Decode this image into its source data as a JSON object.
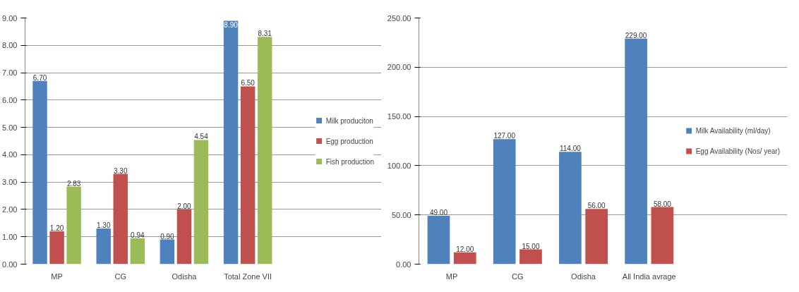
{
  "chart_data": [
    {
      "type": "bar",
      "categories": [
        "MP",
        "CG",
        "Odisha",
        "Total Zone VII"
      ],
      "series": [
        {
          "name": "Milk produciton",
          "color": "#4f81bd",
          "values": [
            6.7,
            1.3,
            0.9,
            8.9
          ],
          "value_labels": [
            "6.70",
            "1.30",
            "0.90",
            "8.90"
          ]
        },
        {
          "name": "Egg production",
          "color": "#c0504d",
          "values": [
            1.2,
            3.3,
            2.0,
            6.5
          ],
          "value_labels": [
            "1.20",
            "3.30",
            "2.00",
            "6.50"
          ]
        },
        {
          "name": "Fish production",
          "color": "#9bbb59",
          "values": [
            2.83,
            0.94,
            4.54,
            8.31
          ],
          "value_labels": [
            "2.83",
            "0.94",
            "4.54",
            "8.31"
          ]
        }
      ],
      "ylim": [
        0,
        9
      ],
      "yticks": [
        {
          "value": 0,
          "label": "0.00"
        },
        {
          "value": 1,
          "label": "1.00"
        },
        {
          "value": 2,
          "label": "2.00"
        },
        {
          "value": 3,
          "label": "3.00"
        },
        {
          "value": 4,
          "label": "4.00"
        },
        {
          "value": 5,
          "label": "5.00"
        },
        {
          "value": 6,
          "label": "6.00"
        },
        {
          "value": 7,
          "label": "7.00"
        },
        {
          "value": 8,
          "label": "8.00"
        },
        {
          "value": 9,
          "label": "9.00"
        }
      ],
      "grid": "y",
      "legend": "right"
    },
    {
      "type": "bar",
      "categories": [
        "MP",
        "CG",
        "Odisha",
        "All India avrage"
      ],
      "series": [
        {
          "name": "Milk Availability (ml/day)",
          "color": "#4f81bd",
          "values": [
            49,
            127,
            114,
            229
          ],
          "value_labels": [
            "49.00",
            "127.00",
            "114.00",
            "229.00"
          ]
        },
        {
          "name": "Egg Availability (Nos/ year)",
          "color": "#c0504d",
          "values": [
            12,
            15,
            56,
            58
          ],
          "value_labels": [
            "12.00",
            "15.00",
            "56.00",
            "58.00"
          ]
        }
      ],
      "ylim": [
        0,
        250
      ],
      "yticks": [
        {
          "value": 0,
          "label": "0.00"
        },
        {
          "value": 50,
          "label": "50.00"
        },
        {
          "value": 100,
          "label": "100.00"
        },
        {
          "value": 150,
          "label": "150.00"
        },
        {
          "value": 200,
          "label": "200.00"
        },
        {
          "value": 250,
          "label": "250.00"
        }
      ],
      "grid": "y",
      "legend": "right"
    }
  ]
}
